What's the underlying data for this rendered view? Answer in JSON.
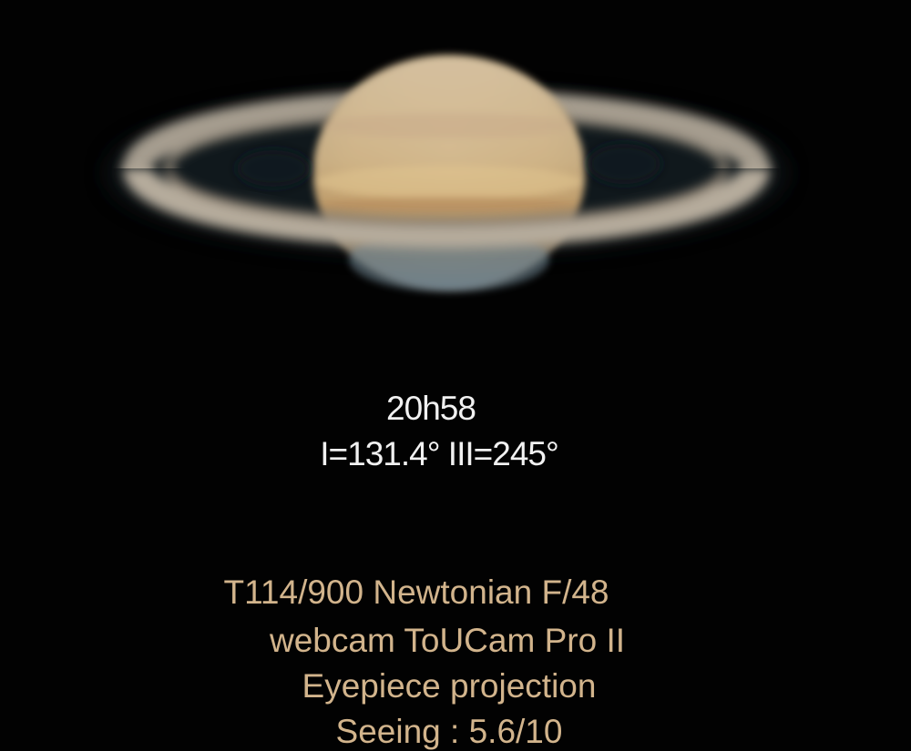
{
  "image": {
    "subject": "saturn-icon",
    "background_color": "#020202"
  },
  "observation": {
    "time": "20h58",
    "longitudes": "I=131.4° III=245°"
  },
  "equipment": {
    "telescope": "T114/900 Newtonian  F/48",
    "camera": "webcam ToUCam Pro II",
    "method": "Eyepiece projection",
    "seeing": "Seeing : 5.6/10"
  },
  "colors": {
    "time_text": "#f1f1f1",
    "equipment_text": "#d2b48c"
  }
}
